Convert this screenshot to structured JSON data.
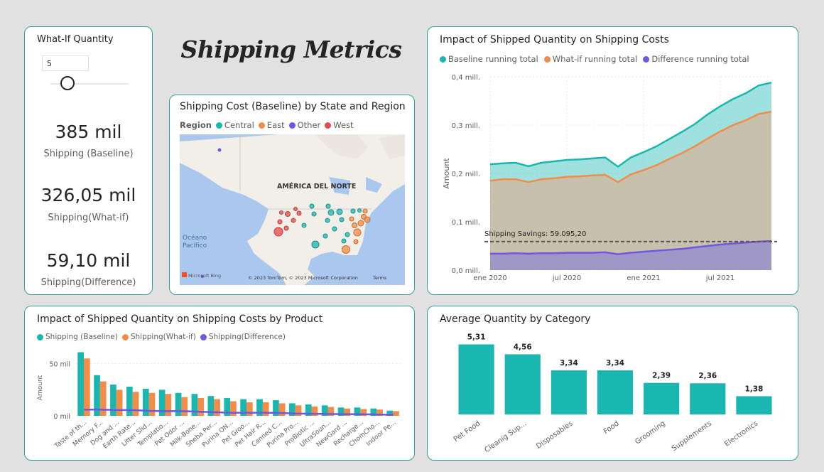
{
  "page_title": "Shipping Metrics",
  "whatif": {
    "title": "What-If Quantity",
    "input_value": "5",
    "kpis": [
      {
        "value": "385 mil",
        "label": "Shipping (Baseline)"
      },
      {
        "value": "326,05 mil",
        "label": "Shipping(What-if)"
      },
      {
        "value": "59,10 mil",
        "label": "Shipping(Difference)"
      }
    ]
  },
  "map": {
    "title": "Shipping Cost (Baseline) by State and Region",
    "legend_title": "Region",
    "legend": [
      {
        "name": "Central",
        "color": "#1ab7b0"
      },
      {
        "name": "East",
        "color": "#f28c49"
      },
      {
        "name": "Other",
        "color": "#7156e0"
      },
      {
        "name": "West",
        "color": "#e64a4a"
      }
    ],
    "labels": {
      "continent": "AMÉRICA DEL NORTE",
      "ocean1": "Océano",
      "ocean2": "Pacífico",
      "bing": "Microsoft Bing",
      "copyright": "© 2023 TomTom, © 2023 Microsoft Corporation",
      "terms": "Terms"
    }
  },
  "line_chart": {
    "title": "Impact of Shipped Quantity on Shipping Costs",
    "legend": [
      {
        "name": "Baseline running total",
        "color": "#1ab7b0"
      },
      {
        "name": "What-if running total",
        "color": "#f28c49"
      },
      {
        "name": "Difference running total",
        "color": "#7156e0"
      }
    ],
    "ylabel": "Amount",
    "annotation": "Shipping Savings: 59.095,20"
  },
  "product_chart": {
    "title": "Impact of Shipped Quantity on Shipping Costs by Product",
    "legend": [
      {
        "name": "Shipping (Baseline)",
        "color": "#1ab7b0"
      },
      {
        "name": "Shipping(What-if)",
        "color": "#f28c49"
      },
      {
        "name": "Shipping(Difference)",
        "color": "#7156e0"
      }
    ],
    "ylabel": "Amount"
  },
  "category_chart": {
    "title": "Average Quantity by Category"
  },
  "chart_data": [
    {
      "type": "area",
      "title": "Impact of Shipped Quantity on Shipping Costs",
      "ylabel": "Amount",
      "ylim": [
        0,
        400000
      ],
      "y_ticks": [
        {
          "value": 0,
          "label": "0,0 mill."
        },
        {
          "value": 100000,
          "label": "0,1 mill."
        },
        {
          "value": 200000,
          "label": "0,2 mill."
        },
        {
          "value": 300000,
          "label": "0,3 mill."
        },
        {
          "value": 400000,
          "label": "0,4 mill."
        }
      ],
      "x": [
        "2020-01",
        "2020-02",
        "2020-03",
        "2020-04",
        "2020-05",
        "2020-06",
        "2020-07",
        "2020-08",
        "2020-09",
        "2020-10",
        "2020-11",
        "2020-12",
        "2021-01",
        "2021-02",
        "2021-03",
        "2021-04",
        "2021-05",
        "2021-06",
        "2021-07",
        "2021-08",
        "2021-09",
        "2021-10",
        "2021-11"
      ],
      "xlim": [
        "2020-01",
        "2021-11"
      ],
      "x_ticks": [
        {
          "value": "2020-01",
          "label": "ene 2020"
        },
        {
          "value": "2020-07",
          "label": "jul 2020"
        },
        {
          "value": "2021-01",
          "label": "ene 2021"
        },
        {
          "value": "2021-07",
          "label": "jul 2021"
        }
      ],
      "series": [
        {
          "name": "Baseline running total",
          "color": "#1ab7b0",
          "values": [
            219000,
            221000,
            222000,
            215000,
            222000,
            225000,
            228000,
            229000,
            231000,
            233000,
            214000,
            233000,
            244000,
            256000,
            271000,
            286000,
            302000,
            322000,
            339000,
            354000,
            366000,
            382000,
            388000
          ]
        },
        {
          "name": "What-if running total",
          "color": "#f28c49",
          "values": [
            185000,
            188000,
            188000,
            182000,
            188000,
            190000,
            193000,
            194000,
            196000,
            197000,
            182000,
            198000,
            207000,
            217000,
            230000,
            242000,
            256000,
            272000,
            287000,
            300000,
            310000,
            323000,
            328000
          ]
        },
        {
          "name": "Difference running total",
          "color": "#7156e0",
          "values": [
            34000,
            34000,
            35000,
            34000,
            35000,
            35000,
            36000,
            36000,
            36000,
            37000,
            33000,
            36000,
            38000,
            40000,
            42000,
            44000,
            47000,
            50000,
            53000,
            55000,
            57000,
            59000,
            60000
          ]
        }
      ],
      "reference_line": {
        "value": 59095.2,
        "label": "Shipping Savings: 59.095,20",
        "style": "dashed"
      }
    },
    {
      "type": "bar",
      "title": "Impact of Shipped Quantity on Shipping Costs by Product",
      "ylabel": "Amount",
      "ylim": [
        0,
        62000
      ],
      "y_ticks": [
        {
          "value": 0,
          "label": "0 mil"
        },
        {
          "value": 50000,
          "label": "50 mil"
        }
      ],
      "categories": [
        "Taste of th...",
        "Memory F...",
        "Dog and ...",
        "Earth Rate...",
        "Litter Slid...",
        "Templatio...",
        "Pet Odor ...",
        "Milk-Bone...",
        "Sheba Per...",
        "Purina ON...",
        "Pet Groo...",
        "Pet Hair R...",
        "Canned C...",
        "Purina Pro...",
        "ProBiotic ...",
        "UltraSoun...",
        "NewGard ...",
        "Recharge...",
        "ChomCho...",
        "Indoor Pe..."
      ],
      "series": [
        {
          "name": "Shipping (Baseline)",
          "type": "bar",
          "color": "#1ab7b0",
          "values": [
            61000,
            39000,
            30000,
            28000,
            26000,
            25000,
            22000,
            21000,
            19000,
            17000,
            16000,
            16000,
            15000,
            12000,
            11000,
            10000,
            8000,
            8000,
            7000,
            5000
          ]
        },
        {
          "name": "Shipping(What-if)",
          "type": "bar",
          "color": "#f28c49",
          "values": [
            55000,
            33000,
            25000,
            23000,
            22000,
            21000,
            18000,
            17000,
            16000,
            14000,
            13000,
            13000,
            12000,
            10000,
            9000,
            8500,
            7000,
            6500,
            6000,
            4500
          ]
        },
        {
          "name": "Shipping(Difference)",
          "type": "line",
          "color": "#7156e0",
          "values": [
            6000,
            6000,
            5500,
            5500,
            4800,
            4500,
            4500,
            4000,
            3500,
            3000,
            3000,
            3000,
            2800,
            2200,
            2000,
            1800,
            1600,
            1500,
            1300,
            1000
          ]
        }
      ]
    },
    {
      "type": "bar",
      "title": "Average Quantity by Category",
      "categories": [
        "Pet Food",
        "Cleanig Sup...",
        "Disposables",
        "Food",
        "Grooming",
        "Supplements",
        "Electronics"
      ],
      "values": [
        5.31,
        4.56,
        3.34,
        3.34,
        2.39,
        2.36,
        1.38
      ],
      "data_labels": [
        "5,31",
        "4,56",
        "3,34",
        "3,34",
        "2,39",
        "2,36",
        "1,38"
      ],
      "ylim": [
        0,
        5.5
      ],
      "color": "#1ab7b0"
    }
  ]
}
